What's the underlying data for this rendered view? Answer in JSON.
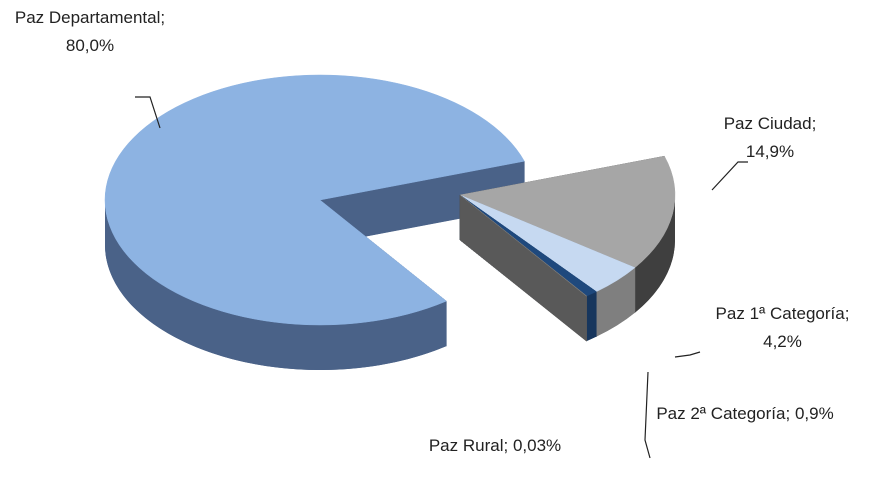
{
  "chart_data": {
    "type": "pie3d",
    "categories": [
      "Paz Departamental",
      "Paz Ciudad",
      "Paz 1ª Categoría",
      "Paz 2ª Categoría",
      "Paz Rural"
    ],
    "values": [
      80.0,
      14.9,
      4.2,
      0.9,
      0.03
    ],
    "value_labels": [
      "80,0%",
      "14,9%",
      "4,2%",
      "0,9%",
      "0,03%"
    ],
    "separator": ";",
    "colors": [
      "#8db3e2",
      "#a6a6a6",
      "#c6d9f1",
      "#1f497d",
      "#7f7f7f"
    ],
    "side_colors": [
      "#4a6288",
      "#3f3f3f",
      "#7f7f7f",
      "#17365d",
      "#595959"
    ]
  }
}
